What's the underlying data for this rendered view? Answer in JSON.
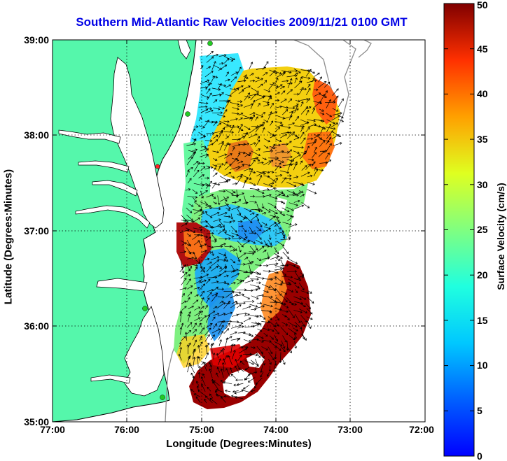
{
  "title": "Southern Mid-Atlantic Raw Velocities 2009/11/21 0100 GMT",
  "xlabel": "Longitude (Degrees:Minutes)",
  "ylabel": "Latitude (Degrees:Minutes)",
  "colorbar": {
    "label": "Surface Velocity (cm/s)",
    "ticks": [
      "0",
      "5",
      "10",
      "15",
      "20",
      "25",
      "30",
      "35",
      "40",
      "45",
      "50"
    ],
    "range": [
      0,
      50
    ],
    "colormap": "jet"
  },
  "axes": {
    "x_ticks": [
      "77:00",
      "76:00",
      "75:00",
      "74:00",
      "73:00",
      "72:00"
    ],
    "y_ticks": [
      "39:00",
      "38:00",
      "37:00",
      "36:00",
      "35:00"
    ],
    "xlim": [
      -77,
      -72
    ],
    "ylim": [
      35,
      39
    ],
    "grid": "dotted"
  },
  "colors": {
    "land": "#55f7ab",
    "title": "#0000e6",
    "stations": "#22cc22",
    "station_highlight": "#ff2222"
  }
}
